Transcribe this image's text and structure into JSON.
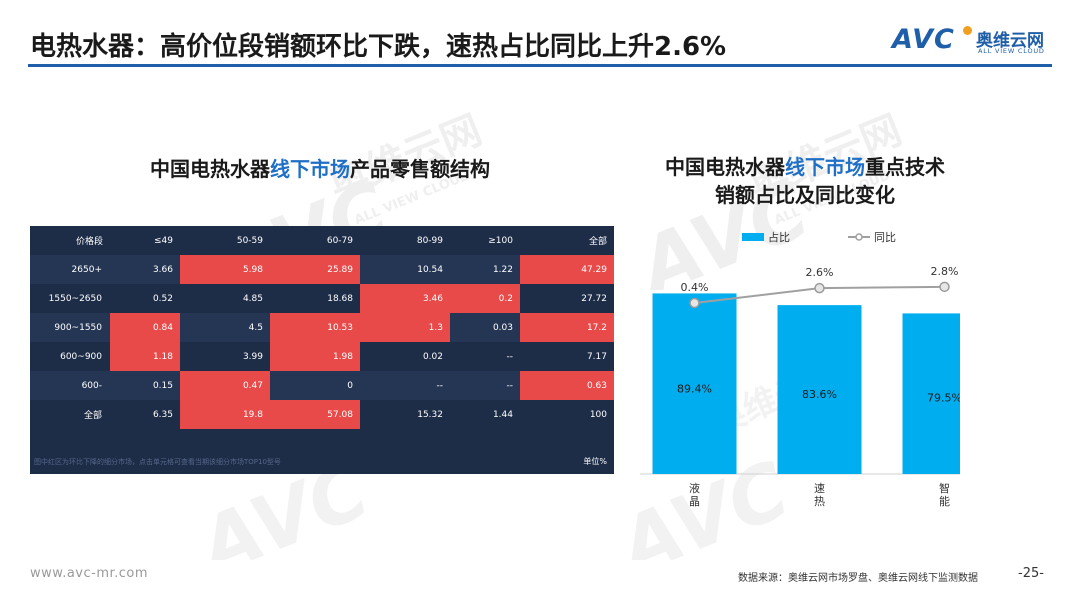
{
  "header": {
    "title": "电热水器：高价位段销额环比下跌，速热占比同比上升2.6%",
    "logo_text": "AVC",
    "logo_cn": "奥维云网",
    "logo_en": "ALL VIEW CLOUD"
  },
  "watermark": {
    "cn": "奥维云网",
    "en": "ALL VIEW CLOUD",
    "mark": "AVC"
  },
  "left_panel": {
    "title_pre": "中国电热水器",
    "title_hl": "线下市场",
    "title_post": "产品零售额结构"
  },
  "right_panel": {
    "title_line1_pre": "中国电热水器",
    "title_line1_hl": "线下市场",
    "title_line1_post": "重点技术",
    "title_line2": "销额占比及同比变化"
  },
  "table": {
    "columns": [
      "价格段",
      "≤49",
      "50-59",
      "60-79",
      "80-99",
      "≥100",
      "全部"
    ],
    "rows": [
      {
        "label": "2650+",
        "cells": [
          "3.66",
          "5.98",
          "25.89",
          "10.54",
          "1.22",
          "47.29"
        ],
        "hot": [
          false,
          true,
          true,
          false,
          false,
          true
        ]
      },
      {
        "label": "1550~2650",
        "cells": [
          "0.52",
          "4.85",
          "18.68",
          "3.46",
          "0.2",
          "27.72"
        ],
        "hot": [
          false,
          false,
          false,
          true,
          true,
          false
        ]
      },
      {
        "label": "900~1550",
        "cells": [
          "0.84",
          "4.5",
          "10.53",
          "1.3",
          "0.03",
          "17.2"
        ],
        "hot": [
          true,
          false,
          true,
          true,
          false,
          true
        ]
      },
      {
        "label": "600~900",
        "cells": [
          "1.18",
          "3.99",
          "1.98",
          "0.02",
          "--",
          "7.17"
        ],
        "hot": [
          true,
          false,
          true,
          false,
          false,
          false
        ]
      },
      {
        "label": "600-",
        "cells": [
          "0.15",
          "0.47",
          "0",
          "--",
          "--",
          "0.63"
        ],
        "hot": [
          false,
          true,
          false,
          false,
          false,
          true
        ]
      },
      {
        "label": "全部",
        "cells": [
          "6.35",
          "19.8",
          "57.08",
          "15.32",
          "1.44",
          "100"
        ],
        "hot": [
          false,
          true,
          true,
          false,
          false,
          false
        ]
      }
    ],
    "note": "图中红区为环比下降的细分市场，点击单元格可查看当期该细分市场TOP10型号",
    "unit": "单位%",
    "hot_color": "#e84a4a"
  },
  "chart_data": {
    "type": "bar",
    "categories": [
      "液晶",
      "速热",
      "智能"
    ],
    "series": [
      {
        "name": "占比",
        "kind": "bar",
        "values": [
          89.4,
          83.6,
          79.5
        ],
        "labels": [
          "89.4%",
          "83.6%",
          "79.5%"
        ],
        "color": "#00aeef"
      },
      {
        "name": "同比",
        "kind": "line",
        "values": [
          0.4,
          2.6,
          2.8
        ],
        "labels": [
          "0.4%",
          "2.6%",
          "2.8%"
        ],
        "color": "#a0a0a0"
      }
    ],
    "title": "",
    "xlabel": "",
    "ylabel": "",
    "ylim": [
      0,
      100
    ],
    "y2lim": [
      -25,
      5
    ],
    "legend_position": "top",
    "grid": false
  },
  "footer": {
    "url": "www.avc-mr.com",
    "source": "数据来源：奥维云网市场罗盘、奥维云网线下监测数据",
    "page": "-25-"
  }
}
